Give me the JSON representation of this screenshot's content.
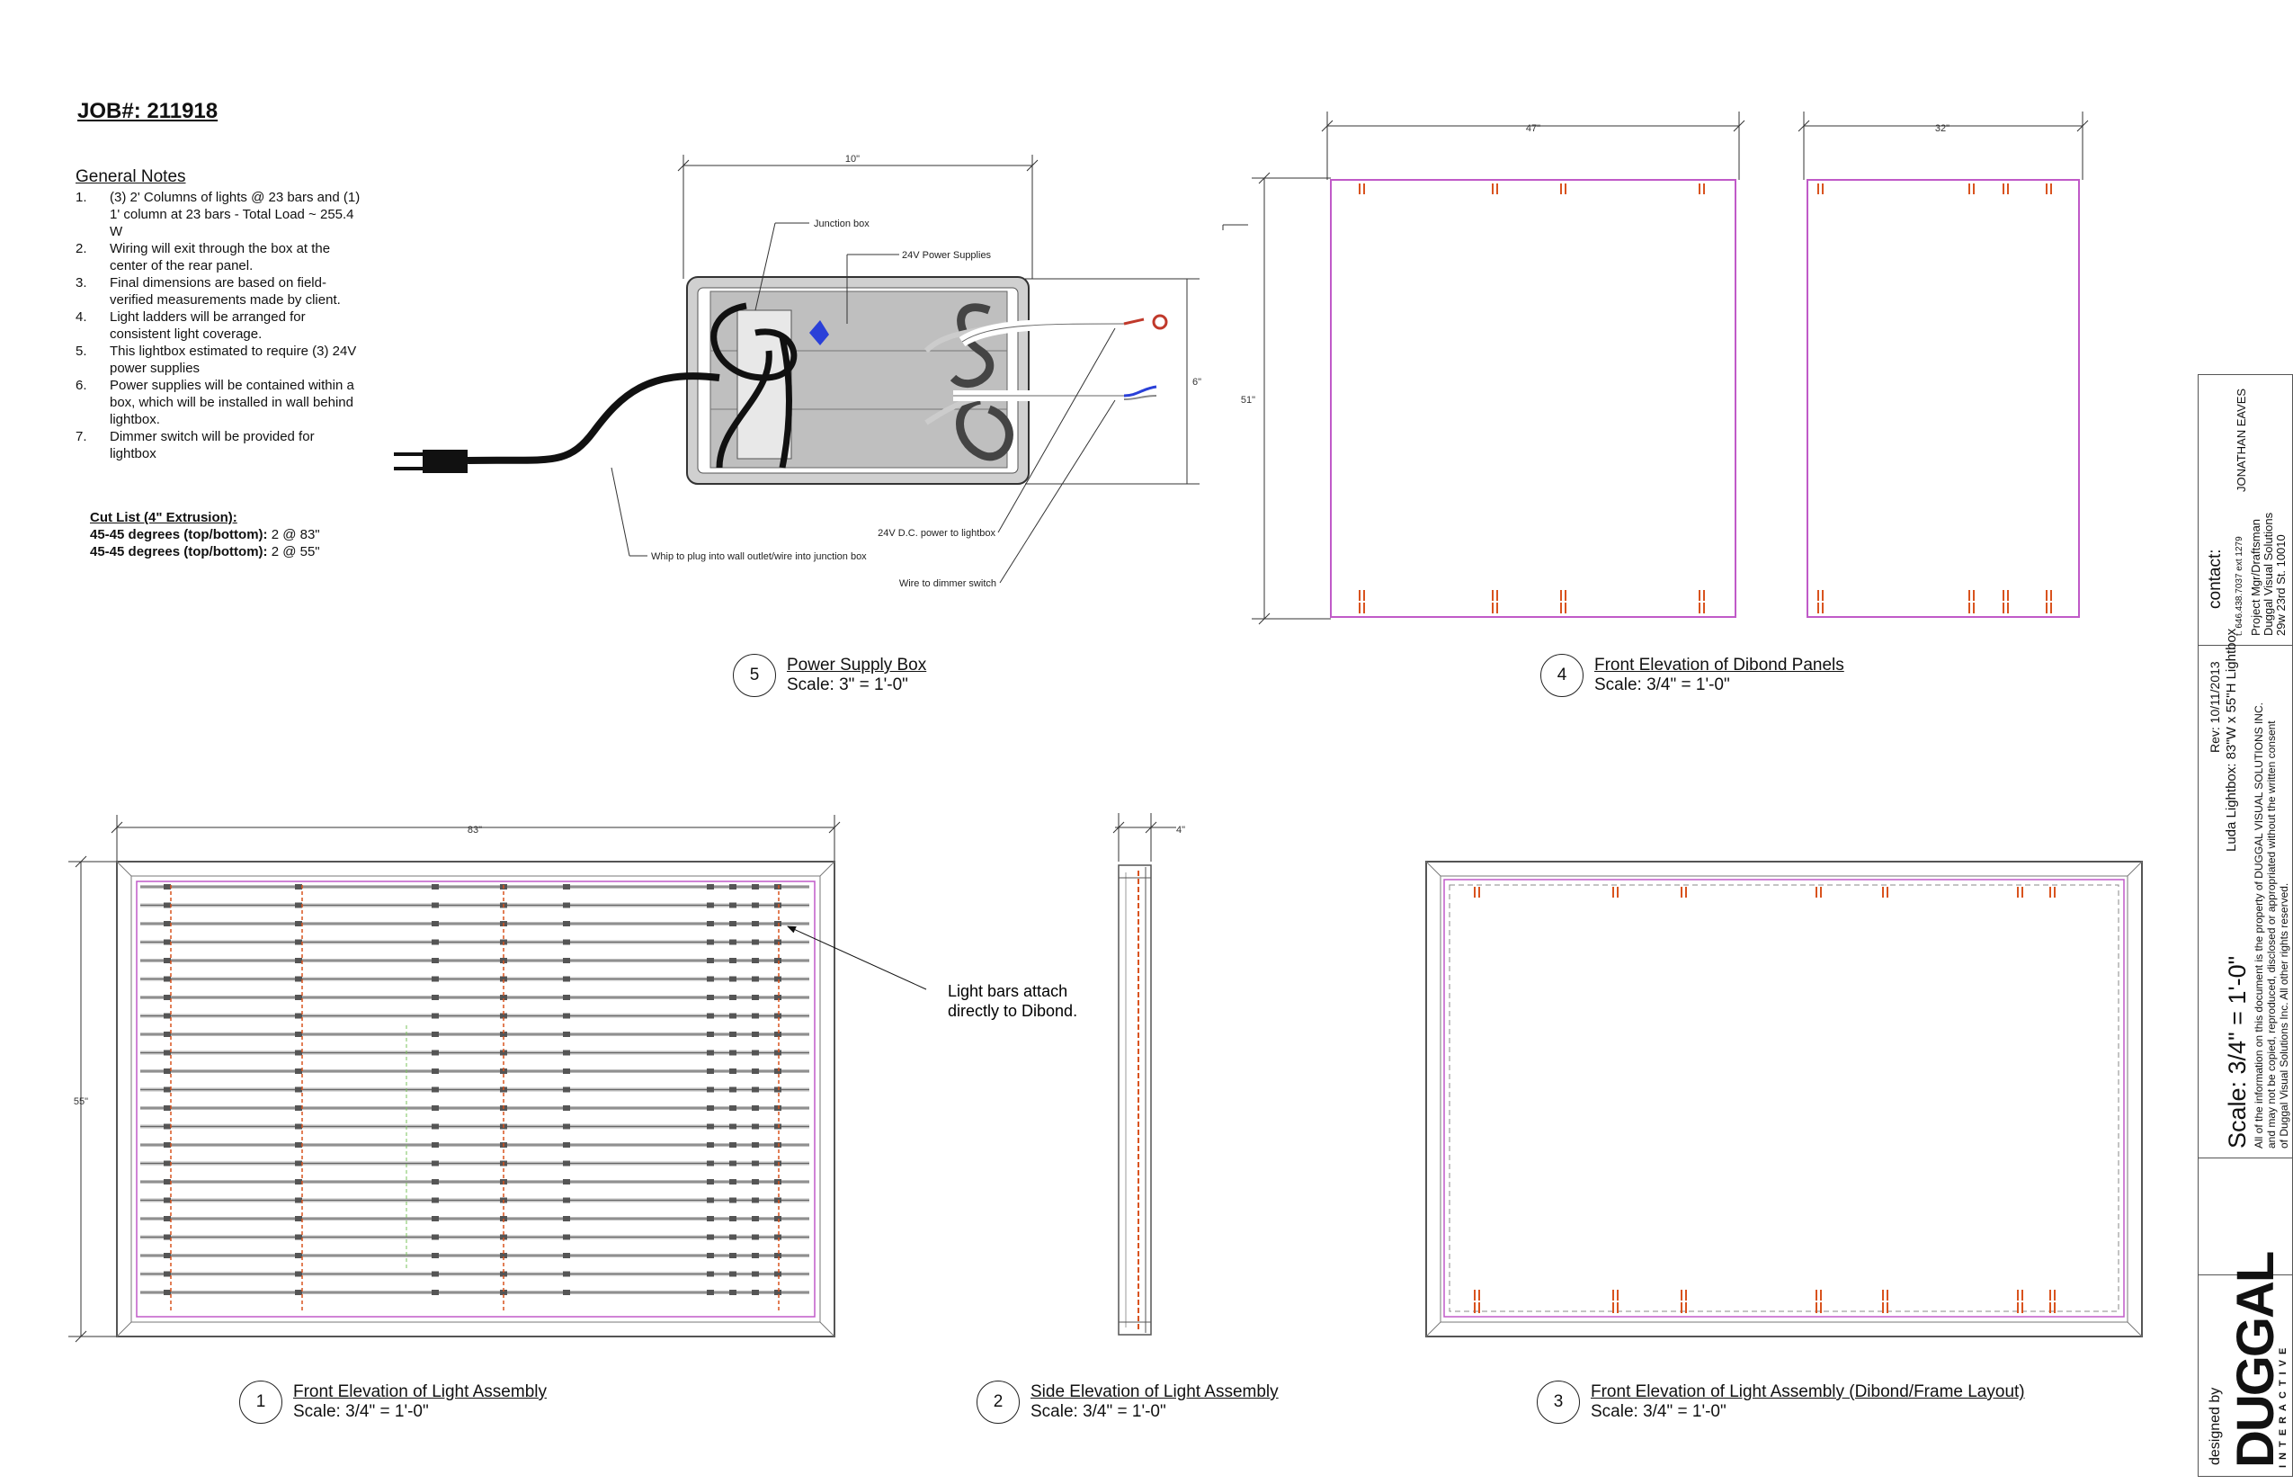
{
  "job": "JOB#: 211918",
  "notes": {
    "title": "General Notes",
    "items": [
      {
        "n": "1.",
        "text": "(3) 2' Columns of lights @ 23 bars and (1) 1' column at 23 bars -  Total Load ~ 255.4 W"
      },
      {
        "n": "2.",
        "text": "Wiring will exit through the box at the center of the rear panel."
      },
      {
        "n": "3.",
        "text": "Final dimensions are based on field-verified measurements made by client."
      },
      {
        "n": "4.",
        "text": "Light ladders will be arranged for consistent light coverage."
      },
      {
        "n": "5.",
        "text": "This lightbox estimated to require (3) 24V power supplies"
      },
      {
        "n": "6.",
        "text": "Power supplies will be contained within a box, which will be installed in wall behind lightbox."
      },
      {
        "n": "7.",
        "text": "Dimmer switch will be provided for lightbox"
      }
    ]
  },
  "cut_list": {
    "title": "Cut List (4\" Extrusion):",
    "rows": [
      {
        "label": "45-45 degrees (top/bottom):",
        "value": " 2 @ 83\""
      },
      {
        "label": "45-45 degrees (top/bottom):",
        "value": " 2 @ 55\""
      }
    ]
  },
  "psb": {
    "dim_w": "10\"",
    "dim_h": "6\"",
    "junction": "Junction box",
    "supplies": "24V Power Supplies",
    "dc_power": "24V D.C. power to lightbox",
    "whip": "Whip to plug into wall outlet/wire into junction box",
    "dimmer": "Wire to dimmer switch"
  },
  "dibond": {
    "w1": "47\"",
    "w2": "32\"",
    "h": "51\""
  },
  "assembly": {
    "w": "83\"",
    "h": "55\"",
    "side_d": "4\"",
    "callout1": "Light bars attach",
    "callout2": "directly to Dibond."
  },
  "captions": {
    "c5": {
      "num": "5",
      "title": "Power Supply Box",
      "scale": "Scale: 3\" = 1'-0\""
    },
    "c4": {
      "num": "4",
      "title": "Front Elevation of Dibond Panels",
      "scale": "Scale: 3/4\" = 1'-0\""
    },
    "c1": {
      "num": "1",
      "title": "Front Elevation of Light Assembly",
      "scale": "Scale: 3/4\" = 1'-0\""
    },
    "c2": {
      "num": "2",
      "title": "Side Elevation of Light Assembly",
      "scale": "Scale: 3/4\" = 1'-0\""
    },
    "c3": {
      "num": "3",
      "title": "Front Elevation of Light Assembly (Dibond/Frame Layout)",
      "scale": "Scale: 3/4\" = 1'-0\""
    }
  },
  "title_block": {
    "contact": "contact:",
    "name": "JONATHAN EAVES",
    "phone": "t. 646.438.7037 ext 1279",
    "role": "Project Mgr/Draftsman",
    "company": "Duggal Visual Solutions",
    "address": "29w 23rd St. 10010",
    "rev": "Rev: 10/11/2013",
    "project": "Luda Lightbox: 83\"W x 55\"H Lightbox",
    "legal1": "All of the information on this document is the property of DUGGAL VISUAL SOLUTIONS INC.",
    "legal2": "and may not be copied, reproduced, disclosed or appropriated without the written consent",
    "legal3": "of Duggal Visual Solutions Inc. All other rights reserved.",
    "scale": "Scale: 3/4\" = 1'-0\"",
    "designed": "designed by",
    "logo": "DUGGAL",
    "logo_sub": "INTERACTIVE"
  }
}
